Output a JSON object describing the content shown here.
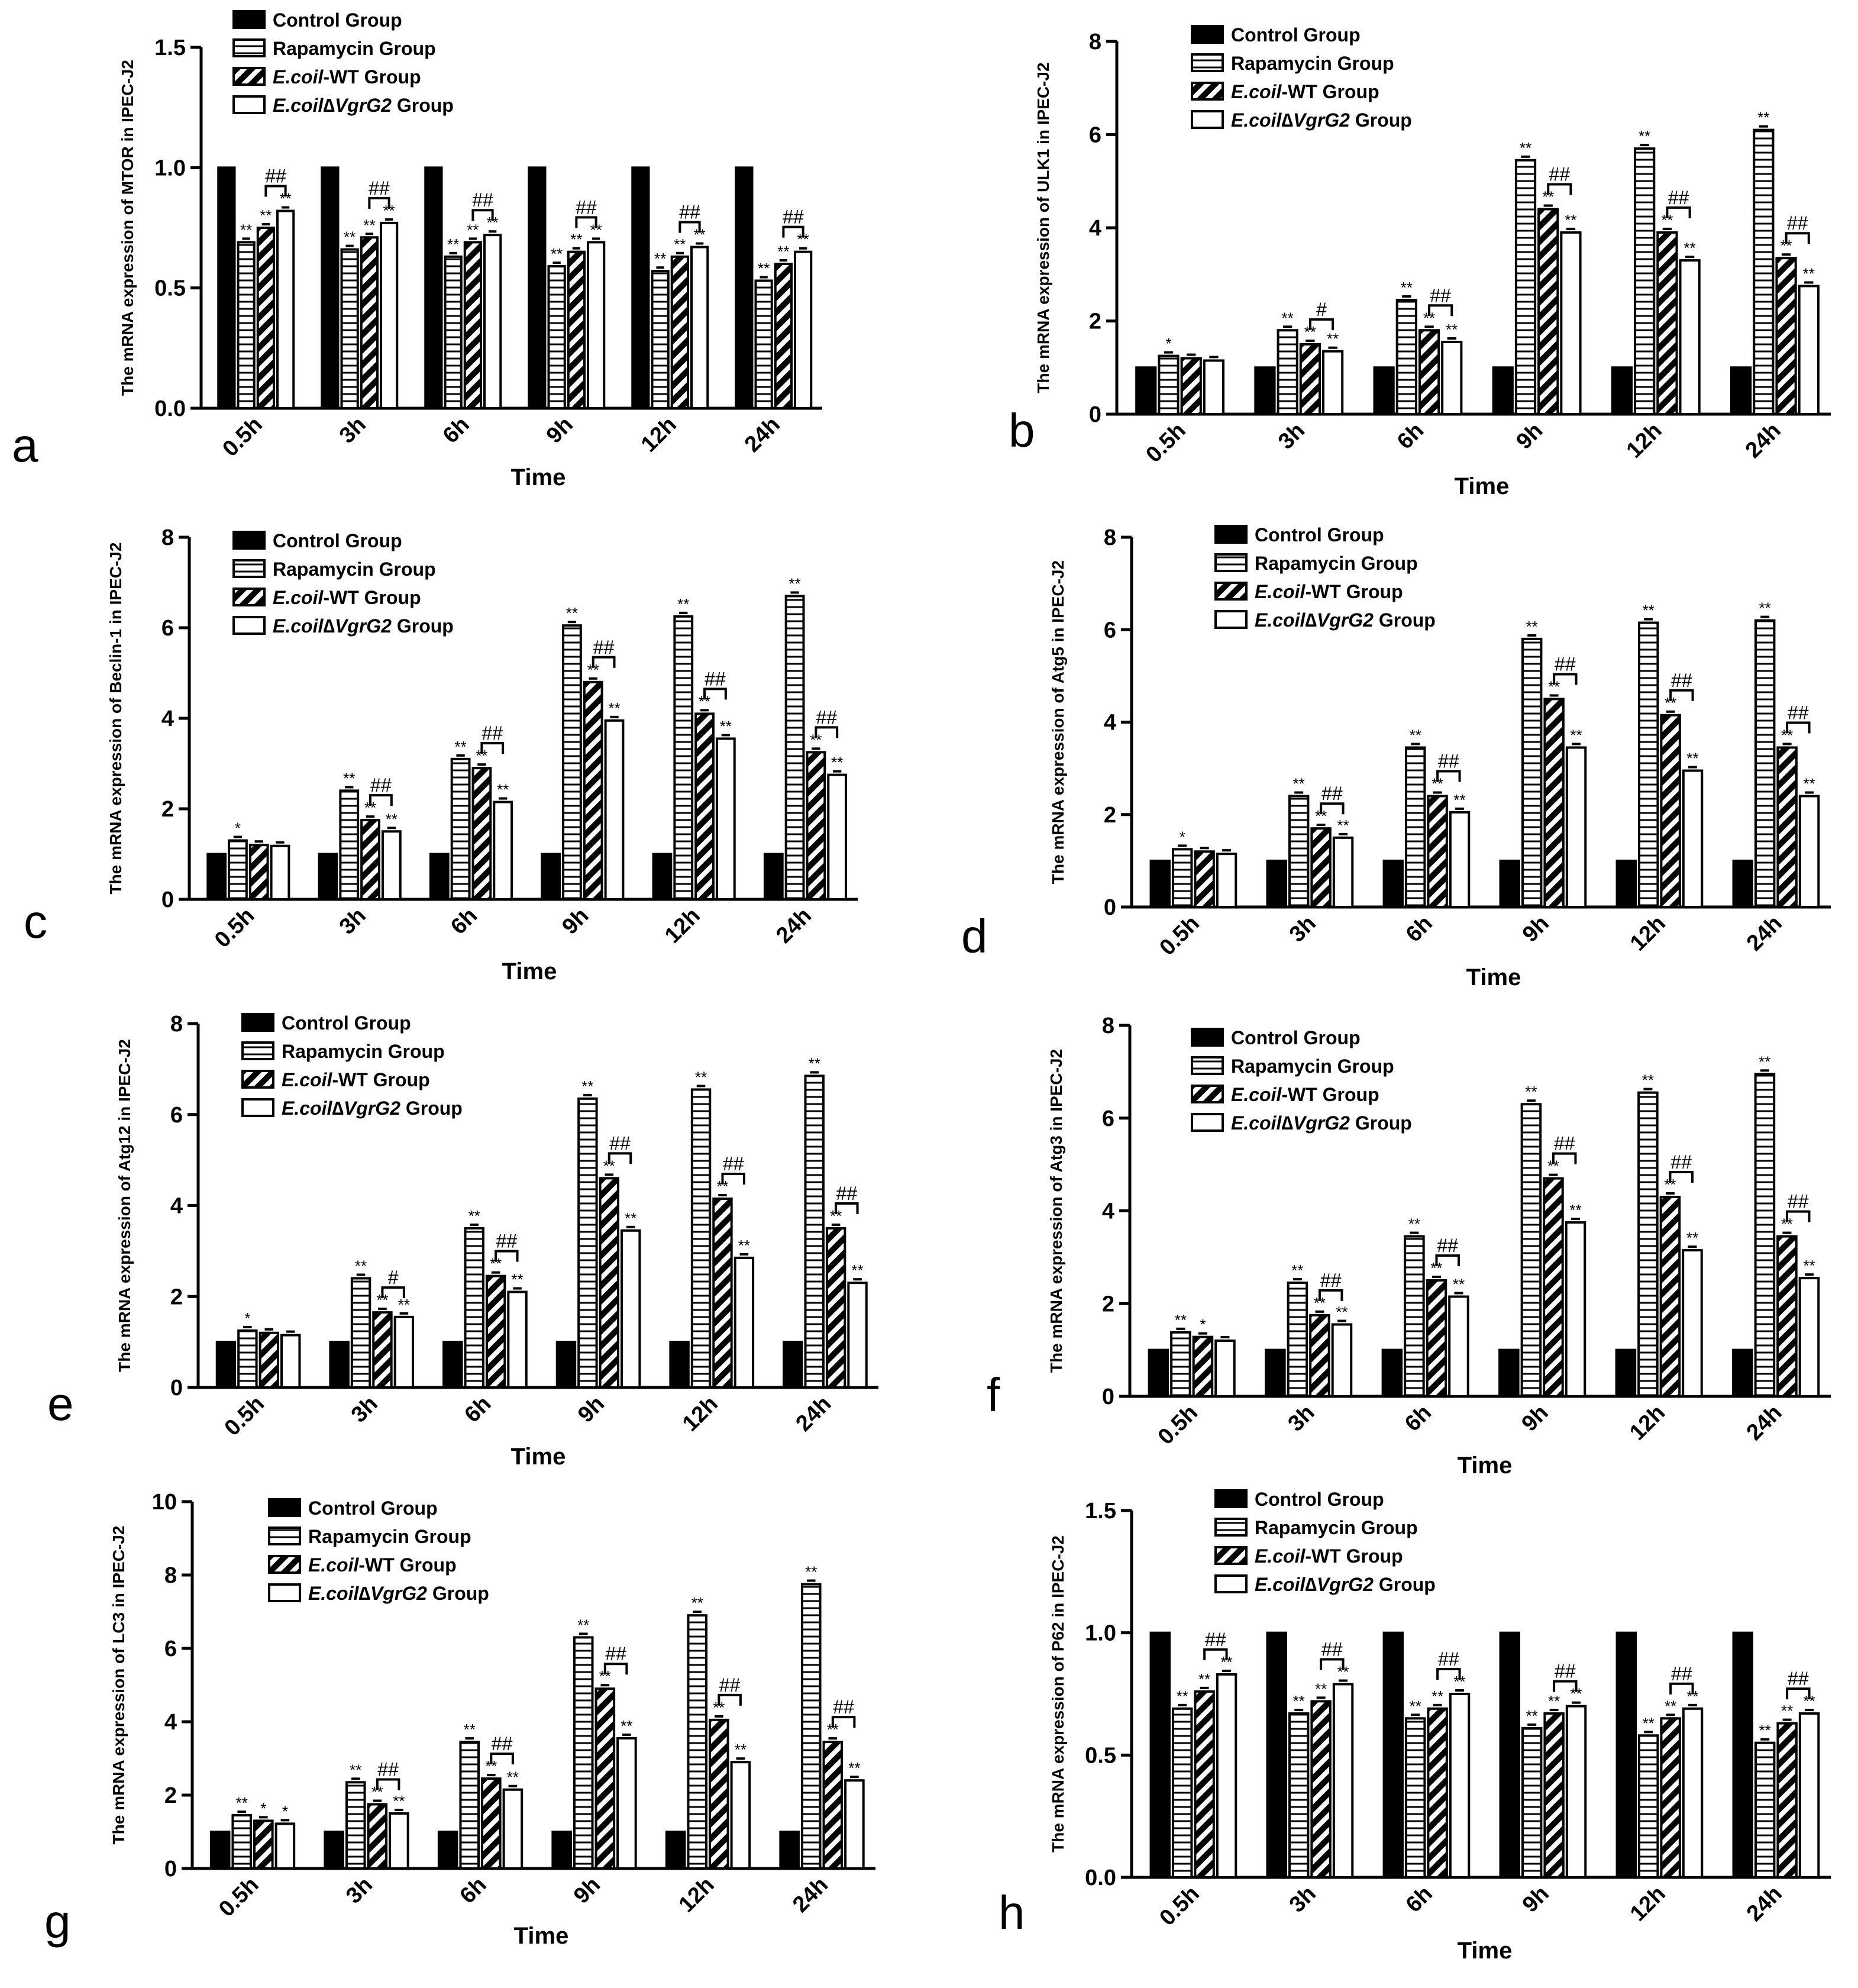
{
  "figure": {
    "time_label": "Time",
    "time_points": [
      "0.5h",
      "3h",
      "6h",
      "9h",
      "12h",
      "24h"
    ],
    "legend": [
      {
        "prefix": "Control Group",
        "italic": "",
        "suffix": ""
      },
      {
        "prefix": "Rapamycin Group",
        "italic": "",
        "suffix": ""
      },
      {
        "prefix": "",
        "italic": "E.coil",
        "suffix": "-WT Group"
      },
      {
        "prefix": "",
        "italic": "E.coil∆VgrG2",
        "suffix": " Group"
      }
    ]
  },
  "chart_data": [
    {
      "panel": "a",
      "type": "bar",
      "ylabel": "The mRNA expression of MTOR in IPEC-J2",
      "xlabel": "Time",
      "categories": [
        "0.5h",
        "3h",
        "6h",
        "9h",
        "12h",
        "24h"
      ],
      "ylim": [
        0,
        1.5
      ],
      "yticks": [
        0.0,
        0.5,
        1.0,
        1.5
      ],
      "yticklabels": [
        "0.0",
        "0.5",
        "1.0",
        "1.5"
      ],
      "series": [
        {
          "name": "Control Group",
          "values": [
            1.0,
            1.0,
            1.0,
            1.0,
            1.0,
            1.0
          ]
        },
        {
          "name": "Rapamycin Group",
          "values": [
            0.69,
            0.66,
            0.63,
            0.59,
            0.57,
            0.53
          ]
        },
        {
          "name": "E.coil-WT Group",
          "values": [
            0.75,
            0.71,
            0.69,
            0.65,
            0.63,
            0.6
          ]
        },
        {
          "name": "E.coil∆VgrG2 Group",
          "values": [
            0.82,
            0.77,
            0.72,
            0.69,
            0.67,
            0.65
          ]
        }
      ],
      "stars": [
        [
          "",
          "**",
          "**",
          "**"
        ],
        [
          "",
          "**",
          "**",
          "**"
        ],
        [
          "",
          "**",
          "**",
          "**"
        ],
        [
          "",
          "**",
          "**",
          "**"
        ],
        [
          "",
          "**",
          "**",
          "**"
        ],
        [
          "",
          "**",
          "**",
          "**"
        ]
      ],
      "compare": [
        "##",
        "##",
        "##",
        "##",
        "##",
        "##"
      ]
    },
    {
      "panel": "b",
      "type": "bar",
      "ylabel": "The mRNA expression of ULK1 in IPEC-J2",
      "xlabel": "Time",
      "categories": [
        "0.5h",
        "3h",
        "6h",
        "9h",
        "12h",
        "24h"
      ],
      "ylim": [
        0,
        8
      ],
      "yticks": [
        0,
        2,
        4,
        6,
        8
      ],
      "yticklabels": [
        "0",
        "2",
        "4",
        "6",
        "8"
      ],
      "series": [
        {
          "name": "Control Group",
          "values": [
            1.0,
            1.0,
            1.0,
            1.0,
            1.0,
            1.0
          ]
        },
        {
          "name": "Rapamycin Group",
          "values": [
            1.25,
            1.8,
            2.45,
            5.45,
            5.7,
            6.1
          ]
        },
        {
          "name": "E.coil-WT Group",
          "values": [
            1.2,
            1.5,
            1.8,
            4.4,
            3.9,
            3.35
          ]
        },
        {
          "name": "E.coil∆VgrG2 Group",
          "values": [
            1.15,
            1.35,
            1.55,
            3.9,
            3.3,
            2.75
          ]
        }
      ],
      "stars": [
        [
          "",
          "*",
          "",
          ""
        ],
        [
          "",
          "**",
          "**",
          "**"
        ],
        [
          "",
          "**",
          "**",
          "**"
        ],
        [
          "",
          "**",
          "**",
          "**"
        ],
        [
          "",
          "**",
          "**",
          "**"
        ],
        [
          "",
          "**",
          "**",
          "**"
        ]
      ],
      "compare": [
        "",
        "#",
        "##",
        "##",
        "##",
        "##"
      ]
    },
    {
      "panel": "c",
      "type": "bar",
      "ylabel": "The mRNA expression of Beclin-1 in IPEC-J2",
      "xlabel": "Time",
      "categories": [
        "0.5h",
        "3h",
        "6h",
        "9h",
        "12h",
        "24h"
      ],
      "ylim": [
        0,
        8
      ],
      "yticks": [
        0,
        2,
        4,
        6,
        8
      ],
      "yticklabels": [
        "0",
        "2",
        "4",
        "6",
        "8"
      ],
      "series": [
        {
          "name": "Control Group",
          "values": [
            1.0,
            1.0,
            1.0,
            1.0,
            1.0,
            1.0
          ]
        },
        {
          "name": "Rapamycin Group",
          "values": [
            1.3,
            2.4,
            3.1,
            6.05,
            6.25,
            6.7
          ]
        },
        {
          "name": "E.coil-WT Group",
          "values": [
            1.2,
            1.75,
            2.9,
            4.8,
            4.1,
            3.25
          ]
        },
        {
          "name": "E.coil∆VgrG2 Group",
          "values": [
            1.18,
            1.5,
            2.15,
            3.95,
            3.55,
            2.75
          ]
        }
      ],
      "stars": [
        [
          "",
          "*",
          "",
          ""
        ],
        [
          "",
          "**",
          "**",
          "**"
        ],
        [
          "",
          "**",
          "**",
          "**"
        ],
        [
          "",
          "**",
          "**",
          "**"
        ],
        [
          "",
          "**",
          "**",
          "**"
        ],
        [
          "",
          "**",
          "**",
          "**"
        ]
      ],
      "compare": [
        "",
        "##",
        "##",
        "##",
        "##",
        "##"
      ]
    },
    {
      "panel": "d",
      "type": "bar",
      "ylabel": "The mRNA expression of Atg5 in IPEC-J2",
      "xlabel": "Time",
      "categories": [
        "0.5h",
        "3h",
        "6h",
        "9h",
        "12h",
        "24h"
      ],
      "ylim": [
        0,
        8
      ],
      "yticks": [
        0,
        2,
        4,
        6,
        8
      ],
      "yticklabels": [
        "0",
        "2",
        "4",
        "6",
        "8"
      ],
      "series": [
        {
          "name": "Control Group",
          "values": [
            1.0,
            1.0,
            1.0,
            1.0,
            1.0,
            1.0
          ]
        },
        {
          "name": "Rapamycin Group",
          "values": [
            1.25,
            2.4,
            3.45,
            5.8,
            6.15,
            6.2
          ]
        },
        {
          "name": "E.coil-WT Group",
          "values": [
            1.2,
            1.7,
            2.4,
            4.5,
            4.15,
            3.45
          ]
        },
        {
          "name": "E.coil∆VgrG2 Group",
          "values": [
            1.15,
            1.5,
            2.05,
            3.45,
            2.95,
            2.4
          ]
        }
      ],
      "stars": [
        [
          "",
          "*",
          "",
          ""
        ],
        [
          "",
          "**",
          "**",
          "**"
        ],
        [
          "",
          "**",
          "**",
          "**"
        ],
        [
          "",
          "**",
          "**",
          "**"
        ],
        [
          "",
          "**",
          "**",
          "**"
        ],
        [
          "",
          "**",
          "**",
          "**"
        ]
      ],
      "compare": [
        "",
        "##",
        "##",
        "##",
        "##",
        "##"
      ]
    },
    {
      "panel": "e",
      "type": "bar",
      "ylabel": "The mRNA expression of Atg12  in IPEC-J2",
      "xlabel": "Time",
      "categories": [
        "0.5h",
        "3h",
        "6h",
        "9h",
        "12h",
        "24h"
      ],
      "ylim": [
        0,
        8
      ],
      "yticks": [
        0,
        2,
        4,
        6,
        8
      ],
      "yticklabels": [
        "0",
        "2",
        "4",
        "6",
        "8"
      ],
      "series": [
        {
          "name": "Control Group",
          "values": [
            1.0,
            1.0,
            1.0,
            1.0,
            1.0,
            1.0
          ]
        },
        {
          "name": "Rapamycin Group",
          "values": [
            1.25,
            2.4,
            3.5,
            6.35,
            6.55,
            6.85
          ]
        },
        {
          "name": "E.coil-WT Group",
          "values": [
            1.2,
            1.65,
            2.45,
            4.6,
            4.15,
            3.5
          ]
        },
        {
          "name": "E.coil∆VgrG2 Group",
          "values": [
            1.15,
            1.55,
            2.1,
            3.45,
            2.85,
            2.3
          ]
        }
      ],
      "stars": [
        [
          "",
          "*",
          "",
          ""
        ],
        [
          "",
          "**",
          "**",
          "**"
        ],
        [
          "",
          "**",
          "**",
          "**"
        ],
        [
          "",
          "**",
          "**",
          "**"
        ],
        [
          "",
          "**",
          "**",
          "**"
        ],
        [
          "",
          "**",
          "**",
          "**"
        ]
      ],
      "compare": [
        "",
        "#",
        "##",
        "##",
        "##",
        "##"
      ]
    },
    {
      "panel": "f",
      "type": "bar",
      "ylabel": "The mRNA expression of Atg3 in IPEC-J2",
      "xlabel": "Time",
      "categories": [
        "0.5h",
        "3h",
        "6h",
        "9h",
        "12h",
        "24h"
      ],
      "ylim": [
        0,
        8
      ],
      "yticks": [
        0,
        2,
        4,
        6,
        8
      ],
      "yticklabels": [
        "0",
        "2",
        "4",
        "6",
        "8"
      ],
      "series": [
        {
          "name": "Control Group",
          "values": [
            1.0,
            1.0,
            1.0,
            1.0,
            1.0,
            1.0
          ]
        },
        {
          "name": "Rapamycin Group",
          "values": [
            1.38,
            2.45,
            3.45,
            6.3,
            6.55,
            6.95
          ]
        },
        {
          "name": "E.coil-WT Group",
          "values": [
            1.28,
            1.75,
            2.5,
            4.7,
            4.3,
            3.45
          ]
        },
        {
          "name": "E.coil∆VgrG2 Group",
          "values": [
            1.2,
            1.55,
            2.15,
            3.75,
            3.15,
            2.55
          ]
        }
      ],
      "stars": [
        [
          "",
          "**",
          "*",
          ""
        ],
        [
          "",
          "**",
          "**",
          "**"
        ],
        [
          "",
          "**",
          "**",
          "**"
        ],
        [
          "",
          "**",
          "**",
          "**"
        ],
        [
          "",
          "**",
          "**",
          "**"
        ],
        [
          "",
          "**",
          "**",
          "**"
        ]
      ],
      "compare": [
        "",
        "##",
        "##",
        "##",
        "##",
        "##"
      ]
    },
    {
      "panel": "g",
      "type": "bar",
      "ylabel": "The mRNA expression of LC3 in IPEC-J2",
      "xlabel": "Time",
      "categories": [
        "0.5h",
        "3h",
        "6h",
        "9h",
        "12h",
        "24h"
      ],
      "ylim": [
        0,
        10
      ],
      "yticks": [
        0,
        2,
        4,
        6,
        8,
        10
      ],
      "yticklabels": [
        "0",
        "2",
        "4",
        "6",
        "8",
        "10"
      ],
      "series": [
        {
          "name": "Control Group",
          "values": [
            1.0,
            1.0,
            1.0,
            1.0,
            1.0,
            1.0
          ]
        },
        {
          "name": "Rapamycin Group",
          "values": [
            1.45,
            2.35,
            3.45,
            6.3,
            6.9,
            7.75
          ]
        },
        {
          "name": "E.coil-WT Group",
          "values": [
            1.3,
            1.75,
            2.45,
            4.9,
            4.05,
            3.45
          ]
        },
        {
          "name": "E.coil∆VgrG2 Group",
          "values": [
            1.22,
            1.5,
            2.15,
            3.55,
            2.9,
            2.4
          ]
        }
      ],
      "stars": [
        [
          "",
          "**",
          "*",
          "*"
        ],
        [
          "",
          "**",
          "**",
          "**"
        ],
        [
          "",
          "**",
          "**",
          "**"
        ],
        [
          "",
          "**",
          "**",
          "**"
        ],
        [
          "",
          "**",
          "**",
          "**"
        ],
        [
          "",
          "**",
          "**",
          "**"
        ]
      ],
      "compare": [
        "",
        "##",
        "##",
        "##",
        "##",
        "##"
      ]
    },
    {
      "panel": "h",
      "type": "bar",
      "ylabel": "The mRNA expression of P62 in IPEC-J2",
      "xlabel": "Time",
      "categories": [
        "0.5h",
        "3h",
        "6h",
        "9h",
        "12h",
        "24h"
      ],
      "ylim": [
        0,
        1.5
      ],
      "yticks": [
        0.0,
        0.5,
        1.0,
        1.5
      ],
      "yticklabels": [
        "0.0",
        "0.5",
        "1.0",
        "1.5"
      ],
      "series": [
        {
          "name": "Control Group",
          "values": [
            1.0,
            1.0,
            1.0,
            1.0,
            1.0,
            1.0
          ]
        },
        {
          "name": "Rapamycin Group",
          "values": [
            0.69,
            0.67,
            0.65,
            0.61,
            0.58,
            0.55
          ]
        },
        {
          "name": "E.coil-WT Group",
          "values": [
            0.76,
            0.72,
            0.69,
            0.67,
            0.65,
            0.63
          ]
        },
        {
          "name": "E.coil∆VgrG2 Group",
          "values": [
            0.83,
            0.79,
            0.75,
            0.7,
            0.69,
            0.67
          ]
        }
      ],
      "stars": [
        [
          "",
          "**",
          "**",
          "**"
        ],
        [
          "",
          "**",
          "**",
          "**"
        ],
        [
          "",
          "**",
          "**",
          "**"
        ],
        [
          "",
          "**",
          "**",
          "**"
        ],
        [
          "",
          "**",
          "**",
          "**"
        ],
        [
          "",
          "**",
          "**",
          "**"
        ]
      ],
      "compare": [
        "##",
        "##",
        "##",
        "##",
        "##",
        "##"
      ]
    }
  ]
}
